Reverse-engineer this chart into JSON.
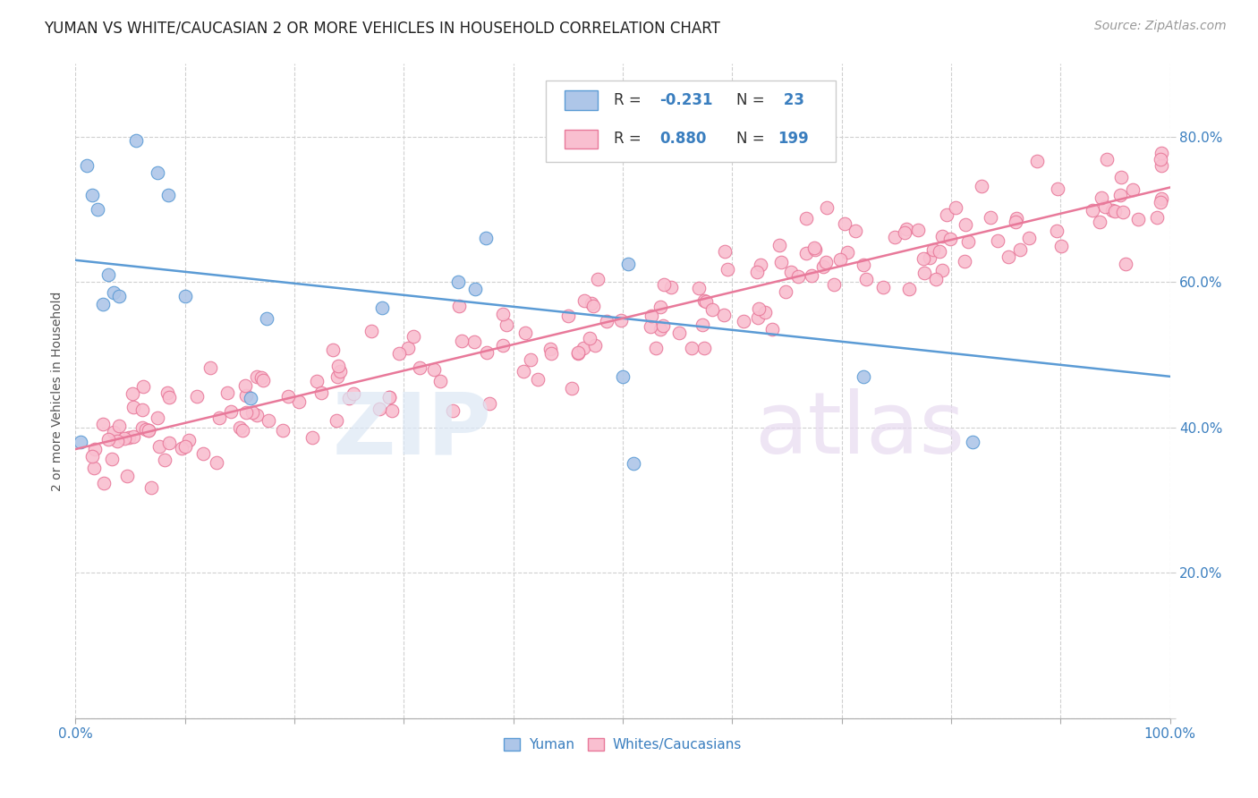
{
  "title": "YUMAN VS WHITE/CAUCASIAN 2 OR MORE VEHICLES IN HOUSEHOLD CORRELATION CHART",
  "source": "Source: ZipAtlas.com",
  "ylabel": "2 or more Vehicles in Household",
  "legend": {
    "blue_R": "-0.231",
    "blue_N": "23",
    "pink_R": "0.880",
    "pink_N": "199"
  },
  "blue_color": "#aec6e8",
  "pink_color": "#f9bfd0",
  "blue_line_color": "#5b9bd5",
  "pink_line_color": "#e8799a",
  "blue_scatter": {
    "x": [
      0.005,
      0.01,
      0.015,
      0.02,
      0.025,
      0.03,
      0.035,
      0.04,
      0.055,
      0.075,
      0.085,
      0.1,
      0.16,
      0.175,
      0.28,
      0.35,
      0.365,
      0.375,
      0.5,
      0.505,
      0.51,
      0.72,
      0.82
    ],
    "y": [
      0.38,
      0.76,
      0.72,
      0.7,
      0.57,
      0.61,
      0.585,
      0.58,
      0.795,
      0.75,
      0.72,
      0.58,
      0.44,
      0.55,
      0.565,
      0.6,
      0.59,
      0.66,
      0.47,
      0.625,
      0.35,
      0.47,
      0.38
    ]
  },
  "pink_line": {
    "x0": 0.0,
    "y0": 0.37,
    "x1": 1.0,
    "y1": 0.73
  },
  "blue_line": {
    "x0": 0.0,
    "y0": 0.63,
    "x1": 1.0,
    "y1": 0.47
  },
  "xlim": [
    0.0,
    1.0
  ],
  "ylim": [
    0.0,
    0.9
  ],
  "yticks": [
    0.0,
    0.2,
    0.4,
    0.6,
    0.8
  ],
  "yticklabels_right": [
    "",
    "20.0%",
    "40.0%",
    "60.0%",
    "80.0%"
  ],
  "xtick_positions": [
    0.0,
    0.1,
    0.2,
    0.3,
    0.4,
    0.5,
    0.6,
    0.7,
    0.8,
    0.9,
    1.0
  ],
  "grid_color": "#d0d0d0",
  "background_color": "#ffffff",
  "title_fontsize": 12,
  "source_fontsize": 10,
  "tick_color": "#3a7ebf",
  "label_color": "#555555"
}
